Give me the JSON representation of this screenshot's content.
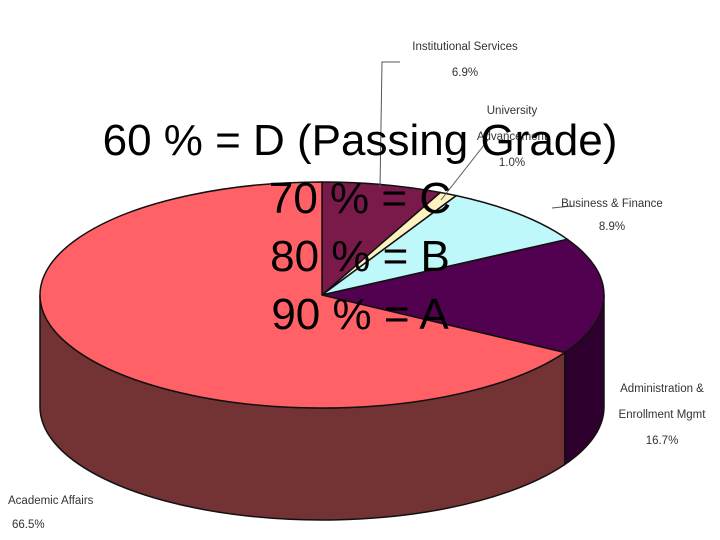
{
  "chart_data": {
    "type": "pie",
    "style": "3d",
    "slices": [
      {
        "label": "Institutional Services",
        "value_label": "6.9%",
        "value": 6.9,
        "color": "#7a1a4a",
        "side_color": "#4a0d2c"
      },
      {
        "label": "University Advancement",
        "value_label": "1.0%",
        "value": 1.0,
        "color": "#fff2c0",
        "side_color": "#c8b880"
      },
      {
        "label": "Business & Finance",
        "value_label": "8.9%",
        "value": 8.9,
        "color": "#bff8fb",
        "side_color": "#7fb8bb"
      },
      {
        "label": "Administration & Enrollment Mgmt",
        "value_label": "16.7%",
        "value": 16.7,
        "color": "#520050",
        "side_color": "#2e002d"
      },
      {
        "label": "Academic Affairs",
        "value_label": "66.5%",
        "value": 66.5,
        "color": "#ff6166",
        "side_color": "#733234"
      }
    ]
  },
  "overlay": {
    "lines": [
      "60 % = D (Passing Grade)",
      "70 % = C",
      "80 % = B",
      "90 % = A"
    ]
  }
}
